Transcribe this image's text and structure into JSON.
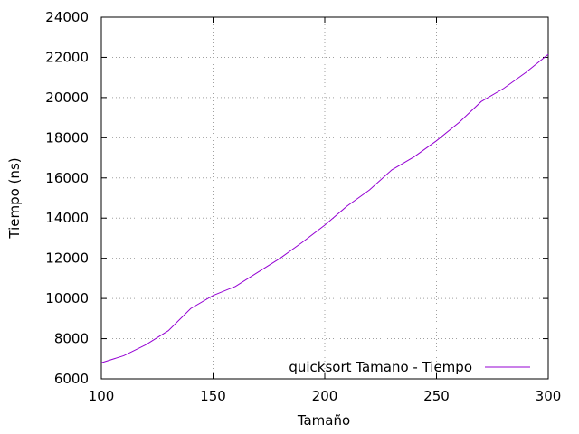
{
  "chart_data": {
    "type": "line",
    "title": "",
    "xlabel": "Tamaño",
    "ylabel": "Tiempo (ns)",
    "xlim": [
      100,
      300
    ],
    "ylim": [
      6000,
      24000
    ],
    "xticks": [
      100,
      150,
      200,
      250,
      300
    ],
    "yticks": [
      6000,
      8000,
      10000,
      12000,
      14000,
      16000,
      18000,
      20000,
      22000,
      24000
    ],
    "grid": true,
    "legend_position": "bottom-right",
    "series": [
      {
        "name": "quicksort Tamano - Tiempo",
        "color": "#9400d3",
        "x": [
          100,
          110,
          120,
          130,
          140,
          150,
          160,
          170,
          180,
          190,
          200,
          210,
          220,
          230,
          240,
          250,
          260,
          270,
          280,
          290,
          300
        ],
        "y": [
          6800,
          7150,
          7700,
          8400,
          9500,
          10150,
          10600,
          11300,
          12000,
          12800,
          13650,
          14600,
          15400,
          16400,
          17050,
          17850,
          18750,
          19800,
          20450,
          21250,
          22150
        ]
      }
    ]
  }
}
